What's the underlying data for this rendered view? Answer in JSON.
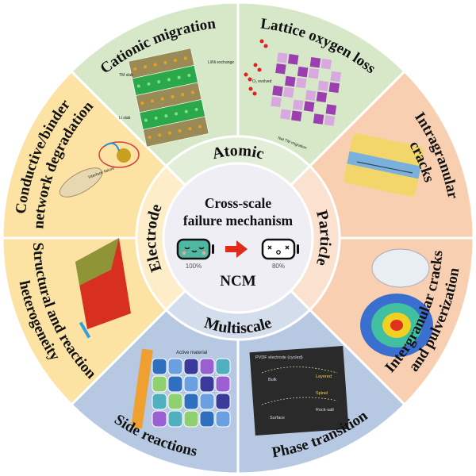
{
  "center": {
    "title_line1": "Cross-scale",
    "title_line2": "failure mechanism",
    "material": "NCM",
    "battery_full_label": "100%",
    "battery_degraded_label": "80%",
    "arrow_color": "#e02a1c",
    "battery_full_color": "#4fb8a2"
  },
  "scales": [
    {
      "label": "Atomic",
      "color": "#e3eed8"
    },
    {
      "label": "Particle",
      "color": "#fbe1cf"
    },
    {
      "label": "Multiscale",
      "color": "#d4ddec"
    },
    {
      "label": "Electrode",
      "color": "#fdedc8"
    }
  ],
  "sectors": [
    {
      "lines": [
        "Lattice oxygen loss"
      ],
      "color": "#d6e8c8",
      "figure_text": [
        "O₂ evolved",
        "Net TM migration"
      ]
    },
    {
      "lines": [
        "Intragranular",
        "cracks"
      ],
      "color": "#f9cfb1",
      "figure_text": []
    },
    {
      "lines": [
        "Intergranular cracks",
        "and pulverization"
      ],
      "color": "#f9cfb1",
      "figure_text": []
    },
    {
      "lines": [
        "Phase transition"
      ],
      "color": "#b7c8e2",
      "figure_text": [
        "PVDF electrode (cycled)",
        "Bulk",
        "Layered",
        "Spinel",
        "Rock-salt",
        "Surface"
      ]
    },
    {
      "lines": [
        "Side reactions"
      ],
      "color": "#b7c8e2",
      "figure_text": [
        "Active material"
      ]
    },
    {
      "lines": [
        "Structural and reaction",
        "heterogeneity"
      ],
      "color": "#fde3a3",
      "figure_text": []
    },
    {
      "lines": [
        "Conductive/binder",
        "network degradation"
      ],
      "color": "#fde3a3",
      "figure_text": [
        "Interface failure"
      ]
    },
    {
      "lines": [
        "Cationic migration"
      ],
      "color": "#d6e8c8",
      "figure_text": [
        "TM slab",
        "Li slab",
        "Li/Ni exchange"
      ]
    }
  ],
  "center_color": "#efeef4"
}
